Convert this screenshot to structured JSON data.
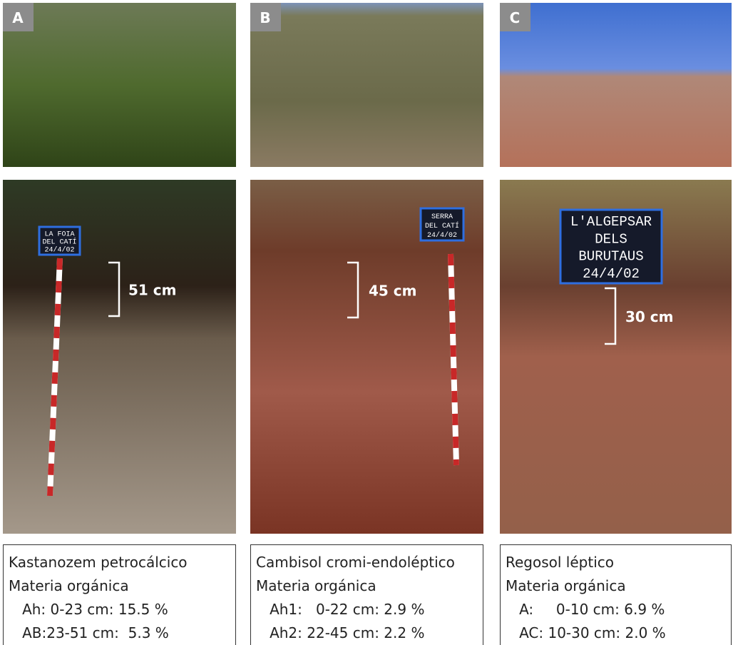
{
  "panels": [
    {
      "label": "A",
      "sign": [
        "LA FOIA",
        "DEL CATÍ",
        "24/4/02"
      ],
      "depth": "51 cm",
      "caption": {
        "title": "Kastanozem petrocálcico",
        "subtitle": "Materia orgánica",
        "lines": [
          "   Ah: 0-23 cm: 15.5 %",
          "   AB:23-51 cm:  5.3 %"
        ]
      }
    },
    {
      "label": "B",
      "sign": [
        "SERRA",
        "DEL CATÍ",
        "24/4/02"
      ],
      "depth": "45 cm",
      "caption": {
        "title": "Cambisol cromi-endoléptico",
        "subtitle": "Materia orgánica",
        "lines": [
          "   Ah1:   0-22 cm: 2.9 %",
          "   Ah2: 22-45 cm: 2.2 %"
        ]
      }
    },
    {
      "label": "C",
      "sign": [
        "L'ALGEPSAR",
        "DELS",
        "BURUTAUS",
        "24/4/02"
      ],
      "depth": "30 cm",
      "caption": {
        "title": "Regosol léptico",
        "subtitle": "Materia orgánica",
        "lines": [
          "   A:     0-10 cm: 6.9 %",
          "   AC: 10-30 cm: 2.0 %"
        ]
      }
    }
  ]
}
